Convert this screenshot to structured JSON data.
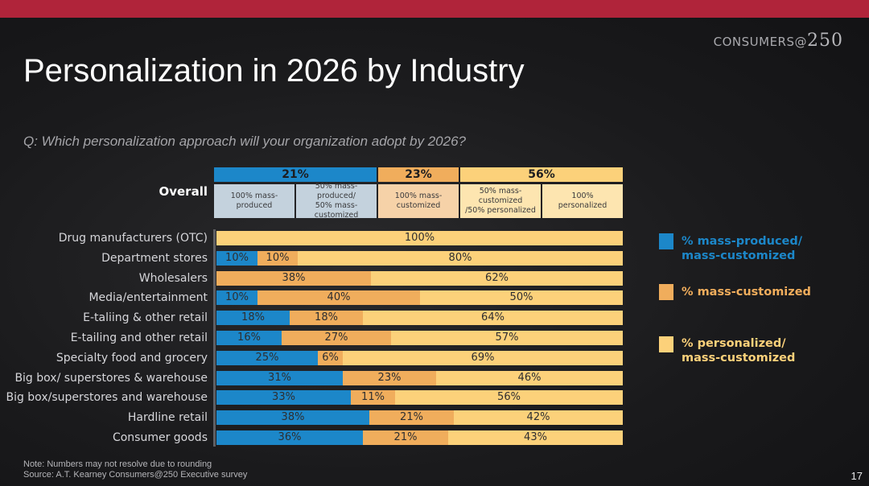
{
  "brand": {
    "text": "CONSUMERS@",
    "num": "250"
  },
  "title": "Personalization in 2026 by Industry",
  "question": "Q: Which personalization approach will your organization adopt by 2026?",
  "colors": {
    "blue": "#1c87c9",
    "orange": "#f0ad5c",
    "yellow": "#fcd17a",
    "hdr_blue_bg": "#c4d2dd",
    "hdr_orange_bg": "#f6d2a8",
    "hdr_yellow_bg": "#fde5b0"
  },
  "overall": {
    "label": "Overall",
    "groups": [
      {
        "value": "21%",
        "subs": [
          "100% mass-\nproduced",
          "50% mass-produced/\n50% mass-customized"
        ]
      },
      {
        "value": "23%",
        "subs": [
          "100% mass-\ncustomized"
        ]
      },
      {
        "value": "56%",
        "subs": [
          "50% mass-customized\n/50% personalized",
          "100%\npersonalized"
        ]
      }
    ]
  },
  "legend": [
    {
      "label": "% mass-produced/\nmass-customized"
    },
    {
      "label": "% mass-customized"
    },
    {
      "label": "% personalized/\nmass-customized"
    }
  ],
  "chart_data": {
    "type": "bar",
    "orientation": "horizontal",
    "stacked": true,
    "categories": [
      "Drug manufacturers (OTC)",
      "Department stores",
      "Wholesalers",
      "Media/entertainment",
      "E-taliing & other retail",
      "E-tailing and other retail",
      "Specialty food and grocery",
      "Big box/ superstores & warehouse",
      "Big box/superstores and warehouse",
      "Hardline retail",
      "Consumer goods"
    ],
    "series": [
      {
        "name": "% mass-produced/ mass-customized",
        "values": [
          0,
          10,
          0,
          10,
          18,
          16,
          25,
          31,
          33,
          38,
          36
        ],
        "labels": [
          "",
          "10%",
          "",
          "10%",
          "18%",
          "16%",
          "25%",
          "31%",
          "33%",
          "38%",
          "36%"
        ]
      },
      {
        "name": "% mass-customized",
        "values": [
          0,
          10,
          38,
          40,
          18,
          27,
          6,
          23,
          11,
          21,
          21
        ],
        "labels": [
          "",
          "10%",
          "38%",
          "40%",
          "18%",
          "27%",
          "6%",
          "23%",
          "11%",
          "21%",
          "21%"
        ]
      },
      {
        "name": "% personalized/ mass-customized",
        "values": [
          100,
          80,
          62,
          50,
          64,
          57,
          69,
          46,
          56,
          42,
          43
        ],
        "labels": [
          "100%",
          "80%",
          "62%",
          "50%",
          "64%",
          "57%",
          "69%",
          "46%",
          "56%",
          "42%",
          "43%"
        ]
      }
    ],
    "xlim": [
      0,
      100
    ],
    "title": "",
    "xlabel": "",
    "ylabel": ""
  },
  "notes": {
    "note": "Note: Numbers may not resolve due to rounding",
    "source": "Source: A.T. Kearney Consumers@250 Executive survey"
  },
  "page_number": "17"
}
